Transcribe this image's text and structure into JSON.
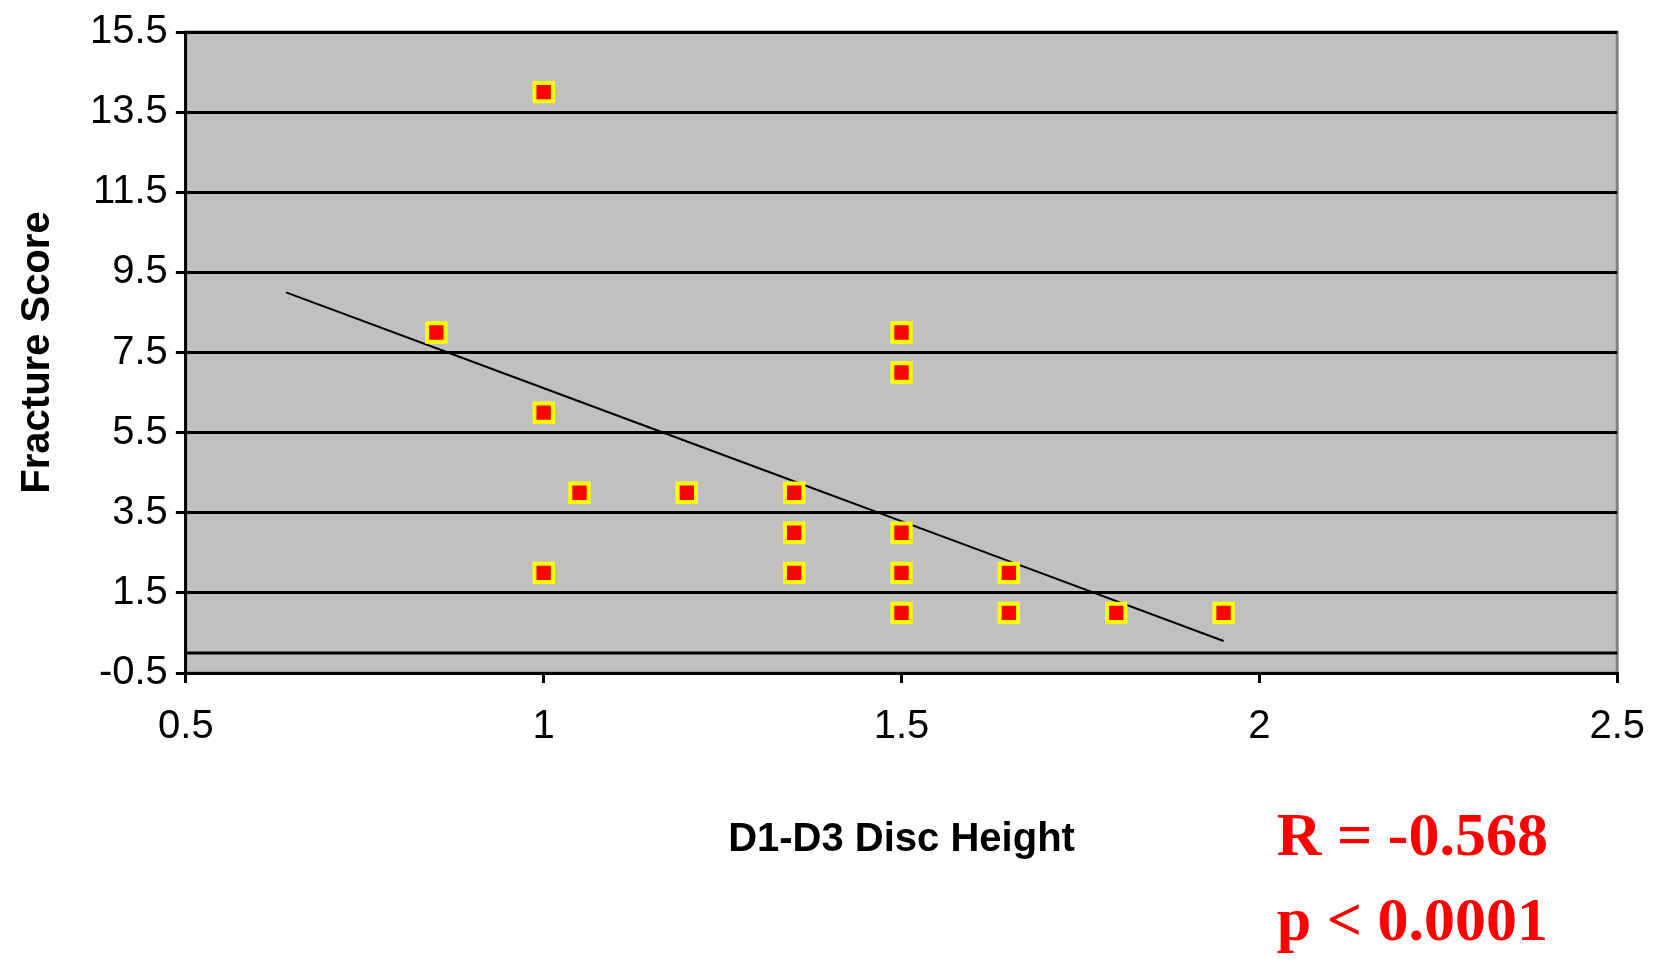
{
  "chart_data": {
    "type": "scatter",
    "xlabel": "D1-D3 Disc Height",
    "ylabel": "Fracture Score",
    "xlim": [
      0.5,
      2.5
    ],
    "xticks": [
      0.5,
      1,
      1.5,
      2,
      2.5
    ],
    "ylim": [
      -0.5,
      15.5
    ],
    "yticks": [
      -0.5,
      1.5,
      3.5,
      5.5,
      7.5,
      9.5,
      11.5,
      13.5,
      15.5
    ],
    "grid": "y",
    "legend": false,
    "marker": "square",
    "ref_lines": [
      {
        "axis": "y",
        "value": 0,
        "color": "#000000"
      }
    ],
    "annotations": [
      "R = -0.568",
      "p < 0.0001"
    ],
    "series": [
      {
        "color": "#ff0000",
        "x": [
          0.85,
          1,
          1,
          1,
          1.05,
          1.2,
          1.35,
          1.35,
          1.35,
          1.5,
          1.5,
          1.5,
          1.5,
          1.5,
          1.65,
          1.65,
          1.8,
          1.95
        ],
        "values": [
          8,
          14,
          6,
          2,
          4,
          4,
          4,
          3,
          2,
          8,
          7,
          3,
          2,
          1,
          2,
          1,
          1,
          1
        ]
      },
      {
        "type": "line",
        "color": "#000000",
        "marker": "none",
        "x": [
          0.64,
          1.95
        ],
        "values": [
          9.0,
          0.3
        ]
      }
    ]
  }
}
